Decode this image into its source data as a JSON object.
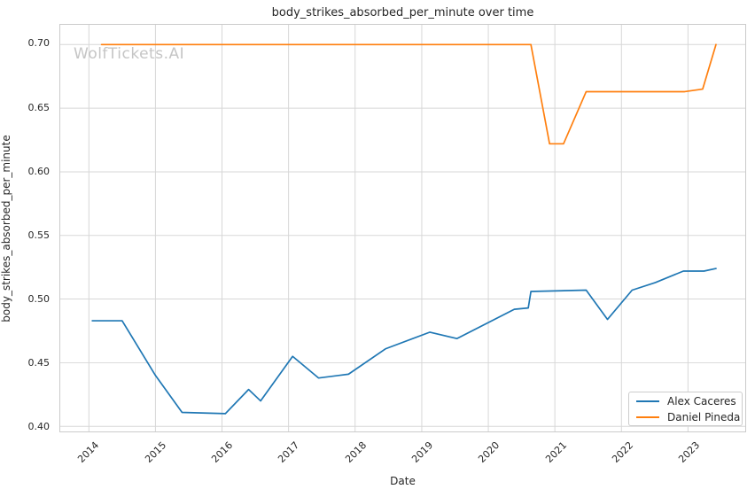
{
  "watermark": "WolfTickets.AI",
  "colors": {
    "background": "#ffffff",
    "grid": "#d7d7d7",
    "spine": "#cbcbcb",
    "text": "#262626",
    "watermark": "#c5c5c5"
  },
  "chart_data": {
    "type": "line",
    "title": "body_strikes_absorbed_per_minute over time",
    "xlabel": "Date",
    "ylabel": "body_strikes_absorbed_per_minute",
    "grid": true,
    "legend_position": "lower right",
    "xlim": [
      2013.57,
      2023.86
    ],
    "ylim": [
      0.396,
      0.7155
    ],
    "x_ticks": [
      2014,
      2015,
      2016,
      2017,
      2018,
      2019,
      2020,
      2021,
      2022,
      2023
    ],
    "y_ticks": [
      0.4,
      0.45,
      0.5,
      0.55,
      0.6,
      0.65,
      0.7
    ],
    "y_tick_labels": [
      "0.40",
      "0.45",
      "0.50",
      "0.55",
      "0.60",
      "0.65",
      "0.70"
    ],
    "series": [
      {
        "name": "Alex Caceres",
        "color": "#1f77b4",
        "x": [
          2014.05,
          2014.5,
          2015.0,
          2015.4,
          2016.05,
          2016.4,
          2016.58,
          2017.06,
          2017.45,
          2017.9,
          2018.46,
          2019.12,
          2019.53,
          2020.39,
          2020.6,
          2020.64,
          2021.47,
          2021.79,
          2022.16,
          2022.51,
          2022.93,
          2023.24,
          2023.42
        ],
        "y": [
          0.483,
          0.483,
          0.44,
          0.411,
          0.41,
          0.429,
          0.42,
          0.455,
          0.438,
          0.441,
          0.461,
          0.474,
          0.469,
          0.492,
          0.493,
          0.506,
          0.507,
          0.484,
          0.507,
          0.513,
          0.522,
          0.522,
          0.524
        ]
      },
      {
        "name": "Daniel Pineda",
        "color": "#ff7f0e",
        "x": [
          2014.19,
          2020.64,
          2020.92,
          2021.13,
          2021.47,
          2022.95,
          2023.22,
          2023.42
        ],
        "y": [
          0.7,
          0.7,
          0.622,
          0.622,
          0.663,
          0.663,
          0.665,
          0.7
        ]
      }
    ]
  }
}
